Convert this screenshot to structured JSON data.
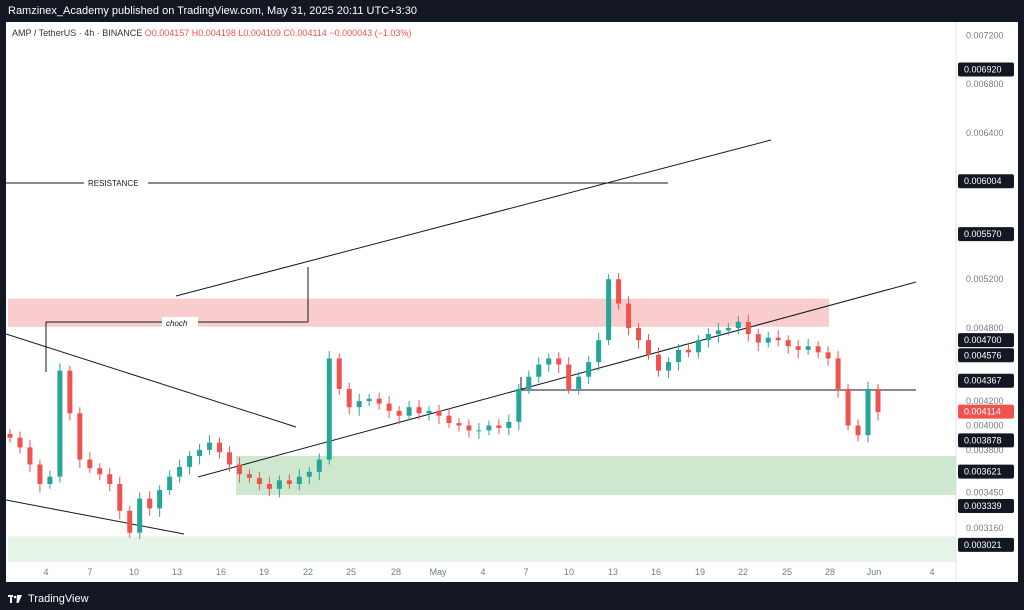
{
  "header": {
    "published": "Ramzinex_Academy published on TradingView.com, May 31, 2025 20:11 UTC+3:30"
  },
  "footer": {
    "brand": "TradingView"
  },
  "ticker": {
    "symbol": "AMP / TetherUS · 4h · BINANCE",
    "open": "O0.004157",
    "high": "H0.004198",
    "low": "L0.004109",
    "close": "C0.004114",
    "change": "−0.000043 (−1.03%)"
  },
  "colors": {
    "up": "#26a69a",
    "down": "#ef5350",
    "resistance_zone": "#f8c7c9",
    "support_zone": "#c8e6c9",
    "current_price": "#ef5350"
  },
  "chart_data": {
    "type": "candlestick",
    "title": "",
    "xlabel": "",
    "ylabel": "",
    "ylim": [
      0.00288,
      0.00731
    ],
    "y_ticks": [
      0.00316,
      0.00345,
      0.0038,
      0.004,
      0.0042,
      0.0048,
      0.0052,
      0.0064,
      0.0068,
      0.0072
    ],
    "x_ticks": [
      "4",
      "7",
      "10",
      "13",
      "16",
      "19",
      "22",
      "25",
      "28",
      "May",
      "4",
      "7",
      "10",
      "13",
      "16",
      "19",
      "22",
      "25",
      "28",
      "Jun",
      "4"
    ],
    "price_labels": [
      {
        "value": "0.006920",
        "style": "dark"
      },
      {
        "value": "0.006004",
        "style": "dark"
      },
      {
        "value": "0.005570",
        "style": "dark"
      },
      {
        "value": "0.004700",
        "style": "dark"
      },
      {
        "value": "0.004576",
        "style": "dark"
      },
      {
        "value": "0.004367",
        "style": "dark"
      },
      {
        "value": "0.004114",
        "style": "current"
      },
      {
        "value": "0.003878",
        "style": "dark"
      },
      {
        "value": "0.003621",
        "style": "dark"
      },
      {
        "value": "0.003339",
        "style": "dark"
      },
      {
        "value": "0.003021",
        "style": "dark"
      }
    ],
    "annotations": [
      {
        "text": "RESISTANCE"
      },
      {
        "text": "choch"
      }
    ],
    "zones": [
      {
        "name": "resistance",
        "y_from": 0.00481,
        "y_to": 0.00504
      },
      {
        "name": "support",
        "y_from": 0.00343,
        "y_to": 0.00375
      },
      {
        "name": "lower-support",
        "y_from": 0.00288,
        "y_to": 0.00309
      }
    ],
    "series": [
      {
        "close_points": [
          0.0039,
          0.00382,
          0.00368,
          0.00352,
          0.00358,
          0.00445,
          0.0041,
          0.00372,
          0.00365,
          0.0036,
          0.00352,
          0.0033,
          0.00312,
          0.0034,
          0.00332,
          0.00347,
          0.00358,
          0.00366,
          0.00375,
          0.0038,
          0.00386,
          0.00378,
          0.00368,
          0.0036,
          0.00357,
          0.00352,
          0.00348,
          0.00355,
          0.00352,
          0.00358,
          0.00362,
          0.00372,
          0.00455,
          0.0043,
          0.00415,
          0.0042,
          0.00422,
          0.00418,
          0.00412,
          0.00408,
          0.00415,
          0.0041,
          0.00412,
          0.00408,
          0.00402,
          0.004,
          0.00396,
          0.00396,
          0.004,
          0.00398,
          0.00403,
          0.0043,
          0.0044,
          0.0045,
          0.00455,
          0.0045,
          0.0043,
          0.0044,
          0.00452,
          0.0047,
          0.0052,
          0.005,
          0.0048,
          0.0047,
          0.00458,
          0.00445,
          0.00452,
          0.00462,
          0.0046,
          0.0047,
          0.00475,
          0.00478,
          0.0048,
          0.00485,
          0.00475,
          0.00468,
          0.00472,
          0.0047,
          0.00465,
          0.00462,
          0.00465,
          0.0046,
          0.00455,
          0.0043,
          0.004,
          0.00392,
          0.0043,
          0.00411
        ]
      }
    ]
  }
}
